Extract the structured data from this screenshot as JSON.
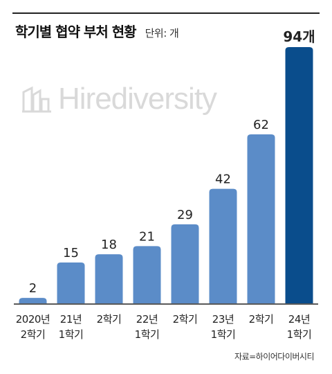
{
  "header": {
    "title": "학기별 협약 부처 현황",
    "unit": "단위: 개"
  },
  "watermark": {
    "text": "Hirediversity"
  },
  "source": "자료=하이어다이버시티",
  "colors": {
    "bar": "#5b8cc8",
    "highlight": "#0a4d8c",
    "baseline": "#222222"
  },
  "chart_data": {
    "type": "bar",
    "title": "학기별 협약 부처 현황",
    "unit": "단위: 개",
    "categories": [
      [
        "2020년",
        "2학기"
      ],
      [
        "21년",
        "1학기"
      ],
      [
        "2학기"
      ],
      [
        "22년",
        "1학기"
      ],
      [
        "2학기"
      ],
      [
        "23년",
        "1학기"
      ],
      [
        "2학기"
      ],
      [
        "24년",
        "1학기"
      ]
    ],
    "values": [
      2,
      15,
      18,
      21,
      29,
      42,
      62,
      94
    ],
    "value_labels": [
      "2",
      "15",
      "18",
      "21",
      "29",
      "42",
      "62",
      "94개"
    ],
    "highlight_index": 7,
    "ylim": [
      0,
      94
    ],
    "grid": false,
    "legend": "none"
  }
}
